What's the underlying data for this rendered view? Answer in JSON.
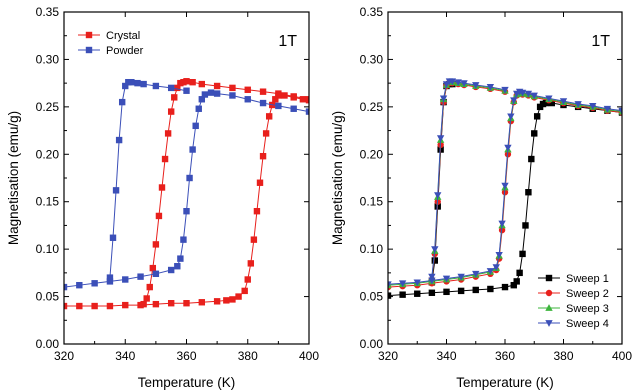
{
  "chart_data": [
    {
      "type": "scatter",
      "panel_label": "1T",
      "xlabel": "Temperature (K)",
      "ylabel": "Magnetisation (emu/g)",
      "xlim": [
        320,
        400
      ],
      "ylim": [
        0.0,
        0.35
      ],
      "xticks": [
        320,
        340,
        360,
        380,
        400
      ],
      "yticks": [
        0.0,
        0.05,
        0.1,
        0.15,
        0.2,
        0.25,
        0.3,
        0.35
      ],
      "xtick_labels": [
        "320",
        "340",
        "360",
        "380",
        "400"
      ],
      "ytick_labels": [
        "0.00",
        "0.05",
        "0.10",
        "0.15",
        "0.20",
        "0.25",
        "0.30",
        "0.35"
      ],
      "grid": false,
      "legend_position": "top-left",
      "series": [
        {
          "name": "Crystal",
          "color": "#e8201c",
          "marker": "square",
          "branches": [
            {
              "x": [
                320,
                325,
                330,
                335,
                340,
                345,
                350,
                355,
                360,
                365,
                370,
                373,
                375,
                377,
                379,
                380,
                381,
                382,
                383,
                384,
                385,
                386,
                387,
                388,
                389,
                390,
                392,
                395,
                398,
                400
              ],
              "y": [
                0.04,
                0.04,
                0.04,
                0.04,
                0.041,
                0.041,
                0.042,
                0.043,
                0.043,
                0.044,
                0.045,
                0.046,
                0.047,
                0.05,
                0.056,
                0.068,
                0.085,
                0.11,
                0.14,
                0.17,
                0.198,
                0.222,
                0.24,
                0.252,
                0.258,
                0.262,
                0.262,
                0.26,
                0.258,
                0.257
              ]
            },
            {
              "x": [
                346,
                347,
                348,
                349,
                350,
                351,
                352,
                353,
                354,
                355,
                356,
                357,
                358,
                359,
                360,
                362,
                365,
                370,
                375,
                380,
                385,
                390,
                395,
                400
              ],
              "y": [
                0.042,
                0.048,
                0.06,
                0.08,
                0.105,
                0.135,
                0.165,
                0.195,
                0.222,
                0.245,
                0.26,
                0.27,
                0.275,
                0.276,
                0.277,
                0.276,
                0.274,
                0.272,
                0.27,
                0.268,
                0.266,
                0.264,
                0.261,
                0.258
              ]
            }
          ]
        },
        {
          "name": "Powder",
          "color": "#3b4fb8",
          "marker": "square",
          "branches": [
            {
              "x": [
                320,
                325,
                330,
                335,
                340,
                345,
                350,
                355,
                357,
                358,
                359,
                360,
                361,
                362,
                363,
                364,
                365,
                366,
                368,
                370,
                375,
                380,
                385,
                390,
                395,
                400
              ],
              "y": [
                0.06,
                0.062,
                0.064,
                0.066,
                0.068,
                0.071,
                0.074,
                0.078,
                0.082,
                0.09,
                0.11,
                0.14,
                0.175,
                0.205,
                0.23,
                0.248,
                0.258,
                0.263,
                0.265,
                0.264,
                0.262,
                0.258,
                0.254,
                0.251,
                0.248,
                0.245
              ]
            },
            {
              "x": [
                335,
                336,
                337,
                338,
                339,
                340,
                341,
                342,
                344,
                346,
                350,
                355,
                360
              ],
              "y": [
                0.07,
                0.112,
                0.162,
                0.215,
                0.255,
                0.272,
                0.276,
                0.276,
                0.275,
                0.274,
                0.272,
                0.27,
                0.267
              ]
            }
          ]
        }
      ]
    },
    {
      "type": "scatter",
      "panel_label": "1T",
      "xlabel": "Temperature (K)",
      "ylabel": "Magnetisation (emu/g)",
      "xlim": [
        320,
        400
      ],
      "ylim": [
        0.0,
        0.35
      ],
      "xticks": [
        320,
        340,
        360,
        380,
        400
      ],
      "yticks": [
        0.0,
        0.05,
        0.1,
        0.15,
        0.2,
        0.25,
        0.3,
        0.35
      ],
      "xtick_labels": [
        "320",
        "340",
        "360",
        "380",
        "400"
      ],
      "ytick_labels": [
        "0.00",
        "0.05",
        "0.10",
        "0.15",
        "0.20",
        "0.25",
        "0.30",
        "0.35"
      ],
      "grid": false,
      "legend_position": "bottom-right",
      "series": [
        {
          "name": "Sweep 1",
          "color": "#000000",
          "marker": "square",
          "branches": [
            {
              "x": [
                320,
                325,
                330,
                335,
                340,
                345,
                350,
                355,
                360,
                363,
                364,
                365,
                366,
                367,
                368,
                369,
                370,
                371,
                372,
                373,
                374,
                376,
                380,
                385,
                390,
                395,
                400
              ],
              "y": [
                0.051,
                0.052,
                0.053,
                0.054,
                0.055,
                0.056,
                0.057,
                0.058,
                0.06,
                0.062,
                0.066,
                0.075,
                0.095,
                0.125,
                0.16,
                0.195,
                0.222,
                0.24,
                0.25,
                0.253,
                0.254,
                0.254,
                0.252,
                0.25,
                0.248,
                0.246,
                0.244
              ]
            },
            {
              "x": [
                335,
                336,
                337,
                338,
                339,
                340,
                341,
                342
              ],
              "y": [
                0.065,
                0.088,
                0.145,
                0.205,
                0.255,
                0.272,
                0.274,
                0.274
              ]
            }
          ]
        },
        {
          "name": "Sweep 2",
          "color": "#e8201c",
          "marker": "circle",
          "branches": [
            {
              "x": [
                320,
                325,
                330,
                335,
                340,
                345,
                350,
                355,
                357,
                358,
                359,
                360,
                361,
                362,
                363,
                364,
                365,
                366,
                368,
                370,
                375,
                380,
                385,
                390,
                395,
                400
              ],
              "y": [
                0.06,
                0.061,
                0.062,
                0.064,
                0.066,
                0.068,
                0.071,
                0.074,
                0.078,
                0.09,
                0.12,
                0.16,
                0.2,
                0.235,
                0.255,
                0.262,
                0.264,
                0.263,
                0.262,
                0.26,
                0.257,
                0.254,
                0.251,
                0.249,
                0.246,
                0.244
              ]
            },
            {
              "x": [
                335,
                336,
                337,
                338,
                339,
                340,
                341,
                342,
                344,
                346,
                350,
                355,
                360
              ],
              "y": [
                0.068,
                0.095,
                0.15,
                0.21,
                0.255,
                0.272,
                0.275,
                0.275,
                0.274,
                0.273,
                0.271,
                0.269,
                0.266
              ]
            }
          ]
        },
        {
          "name": "Sweep 3",
          "color": "#3cb43c",
          "marker": "triangle-up",
          "branches": [
            {
              "x": [
                320,
                325,
                330,
                335,
                340,
                345,
                350,
                355,
                357,
                358,
                359,
                360,
                361,
                362,
                363,
                364,
                365,
                366,
                368,
                370,
                375,
                380,
                385,
                390,
                395,
                400
              ],
              "y": [
                0.062,
                0.063,
                0.064,
                0.066,
                0.068,
                0.07,
                0.073,
                0.076,
                0.08,
                0.093,
                0.125,
                0.165,
                0.205,
                0.238,
                0.256,
                0.263,
                0.265,
                0.264,
                0.263,
                0.261,
                0.258,
                0.255,
                0.252,
                0.25,
                0.247,
                0.245
              ]
            },
            {
              "x": [
                335,
                336,
                337,
                338,
                339,
                340,
                341,
                342,
                344,
                346,
                350,
                355,
                360
              ],
              "y": [
                0.07,
                0.098,
                0.155,
                0.215,
                0.258,
                0.273,
                0.276,
                0.276,
                0.275,
                0.274,
                0.272,
                0.27,
                0.267
              ]
            }
          ]
        },
        {
          "name": "Sweep 4",
          "color": "#3b4fb8",
          "marker": "triangle-down",
          "branches": [
            {
              "x": [
                320,
                325,
                330,
                335,
                340,
                345,
                350,
                355,
                357,
                358,
                359,
                360,
                361,
                362,
                363,
                364,
                365,
                366,
                368,
                370,
                375,
                380,
                385,
                390,
                395,
                400
              ],
              "y": [
                0.063,
                0.064,
                0.065,
                0.067,
                0.069,
                0.071,
                0.074,
                0.077,
                0.081,
                0.094,
                0.127,
                0.167,
                0.207,
                0.24,
                0.257,
                0.264,
                0.266,
                0.265,
                0.264,
                0.262,
                0.259,
                0.256,
                0.253,
                0.251,
                0.248,
                0.246
              ]
            },
            {
              "x": [
                335,
                336,
                337,
                338,
                339,
                340,
                341,
                342,
                344,
                346,
                350,
                355,
                360
              ],
              "y": [
                0.071,
                0.1,
                0.157,
                0.217,
                0.259,
                0.274,
                0.277,
                0.277,
                0.276,
                0.275,
                0.273,
                0.271,
                0.268
              ]
            }
          ]
        }
      ]
    }
  ]
}
